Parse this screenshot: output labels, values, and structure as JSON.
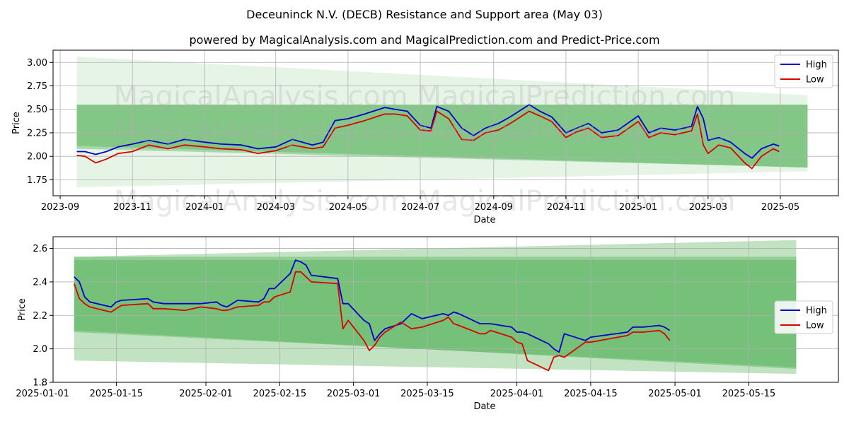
{
  "title": "Deceuninck N.V. (DECB) Resistance and Support area (May 03)",
  "subtitle": "powered by MagicalAnalysis.com and MagicalPrediction.com and Predict-Price.com",
  "watermarks": [
    "MagicalAnalysis.com",
    "MagicalPrediction.com"
  ],
  "colors": {
    "high": "#0000cc",
    "low": "#dd0000",
    "band": "#4caf50"
  },
  "chart_data": [
    {
      "type": "line",
      "xlabel": "Date",
      "ylabel": "Price",
      "x_range": [
        "2023-08-26",
        "2025-06-19"
      ],
      "ylim": [
        1.58,
        3.13
      ],
      "x_ticks": [
        "2023-09",
        "2023-11",
        "2024-01",
        "2024-03",
        "2024-05",
        "2024-07",
        "2024-09",
        "2024-11",
        "2025-01",
        "2025-03",
        "2025-05"
      ],
      "y_ticks": [
        1.75,
        2.0,
        2.25,
        2.5,
        2.75,
        3.0
      ],
      "grid": true,
      "legend": "top-right",
      "bands": [
        {
          "x": [
            "2023-09-15",
            "2025-05-24"
          ],
          "upper": [
            3.06,
            2.65
          ],
          "lower": [
            1.67,
            1.84
          ],
          "opacity": 0.14
        },
        {
          "x": [
            "2023-09-15",
            "2025-05-24"
          ],
          "upper": [
            2.55,
            2.55
          ],
          "lower": [
            2.11,
            1.88
          ],
          "opacity": 0.4
        },
        {
          "x": [
            "2023-09-15",
            "2025-05-24"
          ],
          "upper": [
            2.55,
            2.55
          ],
          "lower": [
            2.08,
            1.88
          ],
          "opacity": 0.4
        }
      ],
      "series": [
        {
          "name": "High",
          "x": [
            "2023-09-15",
            "2023-09-22",
            "2023-10-01",
            "2023-10-10",
            "2023-10-20",
            "2023-11-01",
            "2023-11-15",
            "2023-12-01",
            "2023-12-15",
            "2024-01-01",
            "2024-01-15",
            "2024-02-01",
            "2024-02-15",
            "2024-03-01",
            "2024-03-15",
            "2024-04-01",
            "2024-04-10",
            "2024-04-20",
            "2024-05-01",
            "2024-05-15",
            "2024-06-01",
            "2024-06-10",
            "2024-06-20",
            "2024-07-01",
            "2024-07-10",
            "2024-07-15",
            "2024-07-25",
            "2024-08-05",
            "2024-08-15",
            "2024-08-25",
            "2024-09-05",
            "2024-09-15",
            "2024-10-01",
            "2024-10-10",
            "2024-10-20",
            "2024-11-01",
            "2024-11-10",
            "2024-11-20",
            "2024-12-01",
            "2024-12-15",
            "2025-01-01",
            "2025-01-10",
            "2025-01-20",
            "2025-02-01",
            "2025-02-15",
            "2025-02-20",
            "2025-02-25",
            "2025-03-01",
            "2025-03-10",
            "2025-03-20",
            "2025-04-01",
            "2025-04-07",
            "2025-04-15",
            "2025-04-25",
            "2025-04-30"
          ],
          "values": [
            2.05,
            2.05,
            2.02,
            2.05,
            2.1,
            2.13,
            2.17,
            2.13,
            2.18,
            2.15,
            2.13,
            2.12,
            2.08,
            2.1,
            2.18,
            2.12,
            2.15,
            2.38,
            2.4,
            2.45,
            2.52,
            2.5,
            2.48,
            2.33,
            2.3,
            2.53,
            2.48,
            2.3,
            2.22,
            2.3,
            2.35,
            2.42,
            2.55,
            2.48,
            2.42,
            2.25,
            2.3,
            2.35,
            2.25,
            2.28,
            2.43,
            2.25,
            2.3,
            2.28,
            2.32,
            2.53,
            2.4,
            2.17,
            2.2,
            2.15,
            2.03,
            1.98,
            2.08,
            2.13,
            2.11
          ]
        },
        {
          "name": "Low",
          "x": [
            "2023-09-15",
            "2023-09-22",
            "2023-10-01",
            "2023-10-10",
            "2023-10-20",
            "2023-11-01",
            "2023-11-15",
            "2023-12-01",
            "2023-12-15",
            "2024-01-01",
            "2024-01-15",
            "2024-02-01",
            "2024-02-15",
            "2024-03-01",
            "2024-03-15",
            "2024-04-01",
            "2024-04-10",
            "2024-04-20",
            "2024-05-01",
            "2024-05-15",
            "2024-06-01",
            "2024-06-10",
            "2024-06-20",
            "2024-07-01",
            "2024-07-10",
            "2024-07-15",
            "2024-07-25",
            "2024-08-05",
            "2024-08-15",
            "2024-08-25",
            "2024-09-05",
            "2024-09-15",
            "2024-10-01",
            "2024-10-10",
            "2024-10-20",
            "2024-11-01",
            "2024-11-10",
            "2024-11-20",
            "2024-12-01",
            "2024-12-15",
            "2025-01-01",
            "2025-01-10",
            "2025-01-20",
            "2025-02-01",
            "2025-02-15",
            "2025-02-20",
            "2025-02-25",
            "2025-03-01",
            "2025-03-10",
            "2025-03-20",
            "2025-04-01",
            "2025-04-07",
            "2025-04-15",
            "2025-04-25",
            "2025-04-30"
          ],
          "values": [
            2.01,
            2.0,
            1.93,
            1.97,
            2.03,
            2.05,
            2.12,
            2.08,
            2.12,
            2.1,
            2.08,
            2.07,
            2.03,
            2.06,
            2.12,
            2.08,
            2.1,
            2.3,
            2.33,
            2.38,
            2.45,
            2.45,
            2.43,
            2.28,
            2.27,
            2.48,
            2.4,
            2.18,
            2.17,
            2.25,
            2.28,
            2.35,
            2.48,
            2.43,
            2.37,
            2.2,
            2.26,
            2.3,
            2.2,
            2.22,
            2.37,
            2.2,
            2.25,
            2.23,
            2.27,
            2.45,
            2.12,
            2.03,
            2.12,
            2.09,
            1.93,
            1.87,
            2.0,
            2.08,
            2.05
          ]
        }
      ]
    },
    {
      "type": "line",
      "xlabel": "Date",
      "ylabel": "Price",
      "x_range": [
        "2025-01-03",
        "2025-06-01"
      ],
      "ylim": [
        1.8,
        2.67
      ],
      "x_ticks": [
        "2025-01-01",
        "2025-01-15",
        "2025-02-01",
        "2025-02-15",
        "2025-03-01",
        "2025-03-15",
        "2025-04-01",
        "2025-04-15",
        "2025-05-01",
        "2025-05-15"
      ],
      "y_ticks": [
        1.8,
        2.0,
        2.2,
        2.4,
        2.6
      ],
      "grid": true,
      "legend": "center-right",
      "bands": [
        {
          "x": [
            "2025-01-07",
            "2025-05-24"
          ],
          "upper": [
            2.55,
            2.65
          ],
          "lower": [
            1.93,
            1.85
          ],
          "opacity": 0.35
        },
        {
          "x": [
            "2025-01-07",
            "2025-05-24"
          ],
          "upper": [
            2.55,
            2.55
          ],
          "lower": [
            2.11,
            1.88
          ],
          "opacity": 0.4
        },
        {
          "x": [
            "2025-01-07",
            "2025-05-24"
          ],
          "upper": [
            2.53,
            2.53
          ],
          "lower": [
            2.1,
            1.89
          ],
          "opacity": 0.4
        }
      ],
      "series": [
        {
          "name": "High",
          "x": [
            "2025-01-07",
            "2025-01-08",
            "2025-01-09",
            "2025-01-10",
            "2025-01-14",
            "2025-01-15",
            "2025-01-16",
            "2025-01-21",
            "2025-01-22",
            "2025-01-24",
            "2025-01-28",
            "2025-01-31",
            "2025-02-03",
            "2025-02-04",
            "2025-02-05",
            "2025-02-07",
            "2025-02-11",
            "2025-02-12",
            "2025-02-13",
            "2025-02-14",
            "2025-02-17",
            "2025-02-18",
            "2025-02-19",
            "2025-02-20",
            "2025-02-21",
            "2025-02-26",
            "2025-02-27",
            "2025-02-28",
            "2025-03-03",
            "2025-03-04",
            "2025-03-05",
            "2025-03-06",
            "2025-03-07",
            "2025-03-10",
            "2025-03-12",
            "2025-03-14",
            "2025-03-18",
            "2025-03-19",
            "2025-03-20",
            "2025-03-21",
            "2025-03-25",
            "2025-03-26",
            "2025-03-27",
            "2025-03-31",
            "2025-04-01",
            "2025-04-02",
            "2025-04-03",
            "2025-04-07",
            "2025-04-08",
            "2025-04-09",
            "2025-04-10",
            "2025-04-14",
            "2025-04-15",
            "2025-04-22",
            "2025-04-23",
            "2025-04-25",
            "2025-04-28",
            "2025-04-29",
            "2025-04-30"
          ],
          "values": [
            2.43,
            2.4,
            2.31,
            2.28,
            2.25,
            2.28,
            2.29,
            2.3,
            2.28,
            2.27,
            2.27,
            2.27,
            2.28,
            2.26,
            2.25,
            2.29,
            2.28,
            2.3,
            2.36,
            2.36,
            2.45,
            2.53,
            2.52,
            2.5,
            2.44,
            2.42,
            2.27,
            2.27,
            2.17,
            2.15,
            2.05,
            2.09,
            2.12,
            2.15,
            2.21,
            2.18,
            2.21,
            2.2,
            2.22,
            2.21,
            2.15,
            2.15,
            2.15,
            2.13,
            2.1,
            2.1,
            2.09,
            2.03,
            2.0,
            1.98,
            2.09,
            2.05,
            2.07,
            2.1,
            2.13,
            2.13,
            2.14,
            2.13,
            2.11
          ]
        },
        {
          "name": "Low",
          "x": [
            "2025-01-07",
            "2025-01-08",
            "2025-01-09",
            "2025-01-10",
            "2025-01-14",
            "2025-01-15",
            "2025-01-16",
            "2025-01-21",
            "2025-01-22",
            "2025-01-24",
            "2025-01-28",
            "2025-01-31",
            "2025-02-03",
            "2025-02-04",
            "2025-02-05",
            "2025-02-07",
            "2025-02-11",
            "2025-02-12",
            "2025-02-13",
            "2025-02-14",
            "2025-02-17",
            "2025-02-18",
            "2025-02-19",
            "2025-02-20",
            "2025-02-21",
            "2025-02-26",
            "2025-02-27",
            "2025-02-28",
            "2025-03-03",
            "2025-03-04",
            "2025-03-05",
            "2025-03-06",
            "2025-03-07",
            "2025-03-10",
            "2025-03-12",
            "2025-03-14",
            "2025-03-18",
            "2025-03-19",
            "2025-03-20",
            "2025-03-21",
            "2025-03-25",
            "2025-03-26",
            "2025-03-27",
            "2025-03-31",
            "2025-04-01",
            "2025-04-02",
            "2025-04-03",
            "2025-04-07",
            "2025-04-08",
            "2025-04-09",
            "2025-04-10",
            "2025-04-14",
            "2025-04-15",
            "2025-04-22",
            "2025-04-23",
            "2025-04-25",
            "2025-04-28",
            "2025-04-29",
            "2025-04-30"
          ],
          "values": [
            2.39,
            2.3,
            2.27,
            2.25,
            2.22,
            2.24,
            2.26,
            2.27,
            2.24,
            2.24,
            2.23,
            2.25,
            2.24,
            2.23,
            2.23,
            2.25,
            2.26,
            2.28,
            2.28,
            2.31,
            2.34,
            2.46,
            2.46,
            2.43,
            2.4,
            2.39,
            2.12,
            2.17,
            2.05,
            1.99,
            2.02,
            2.07,
            2.1,
            2.16,
            2.12,
            2.13,
            2.17,
            2.19,
            2.15,
            2.14,
            2.09,
            2.09,
            2.11,
            2.07,
            2.04,
            2.03,
            1.93,
            1.87,
            1.95,
            1.96,
            1.95,
            2.04,
            2.04,
            2.08,
            2.1,
            2.1,
            2.11,
            2.09,
            2.05
          ]
        }
      ]
    }
  ]
}
